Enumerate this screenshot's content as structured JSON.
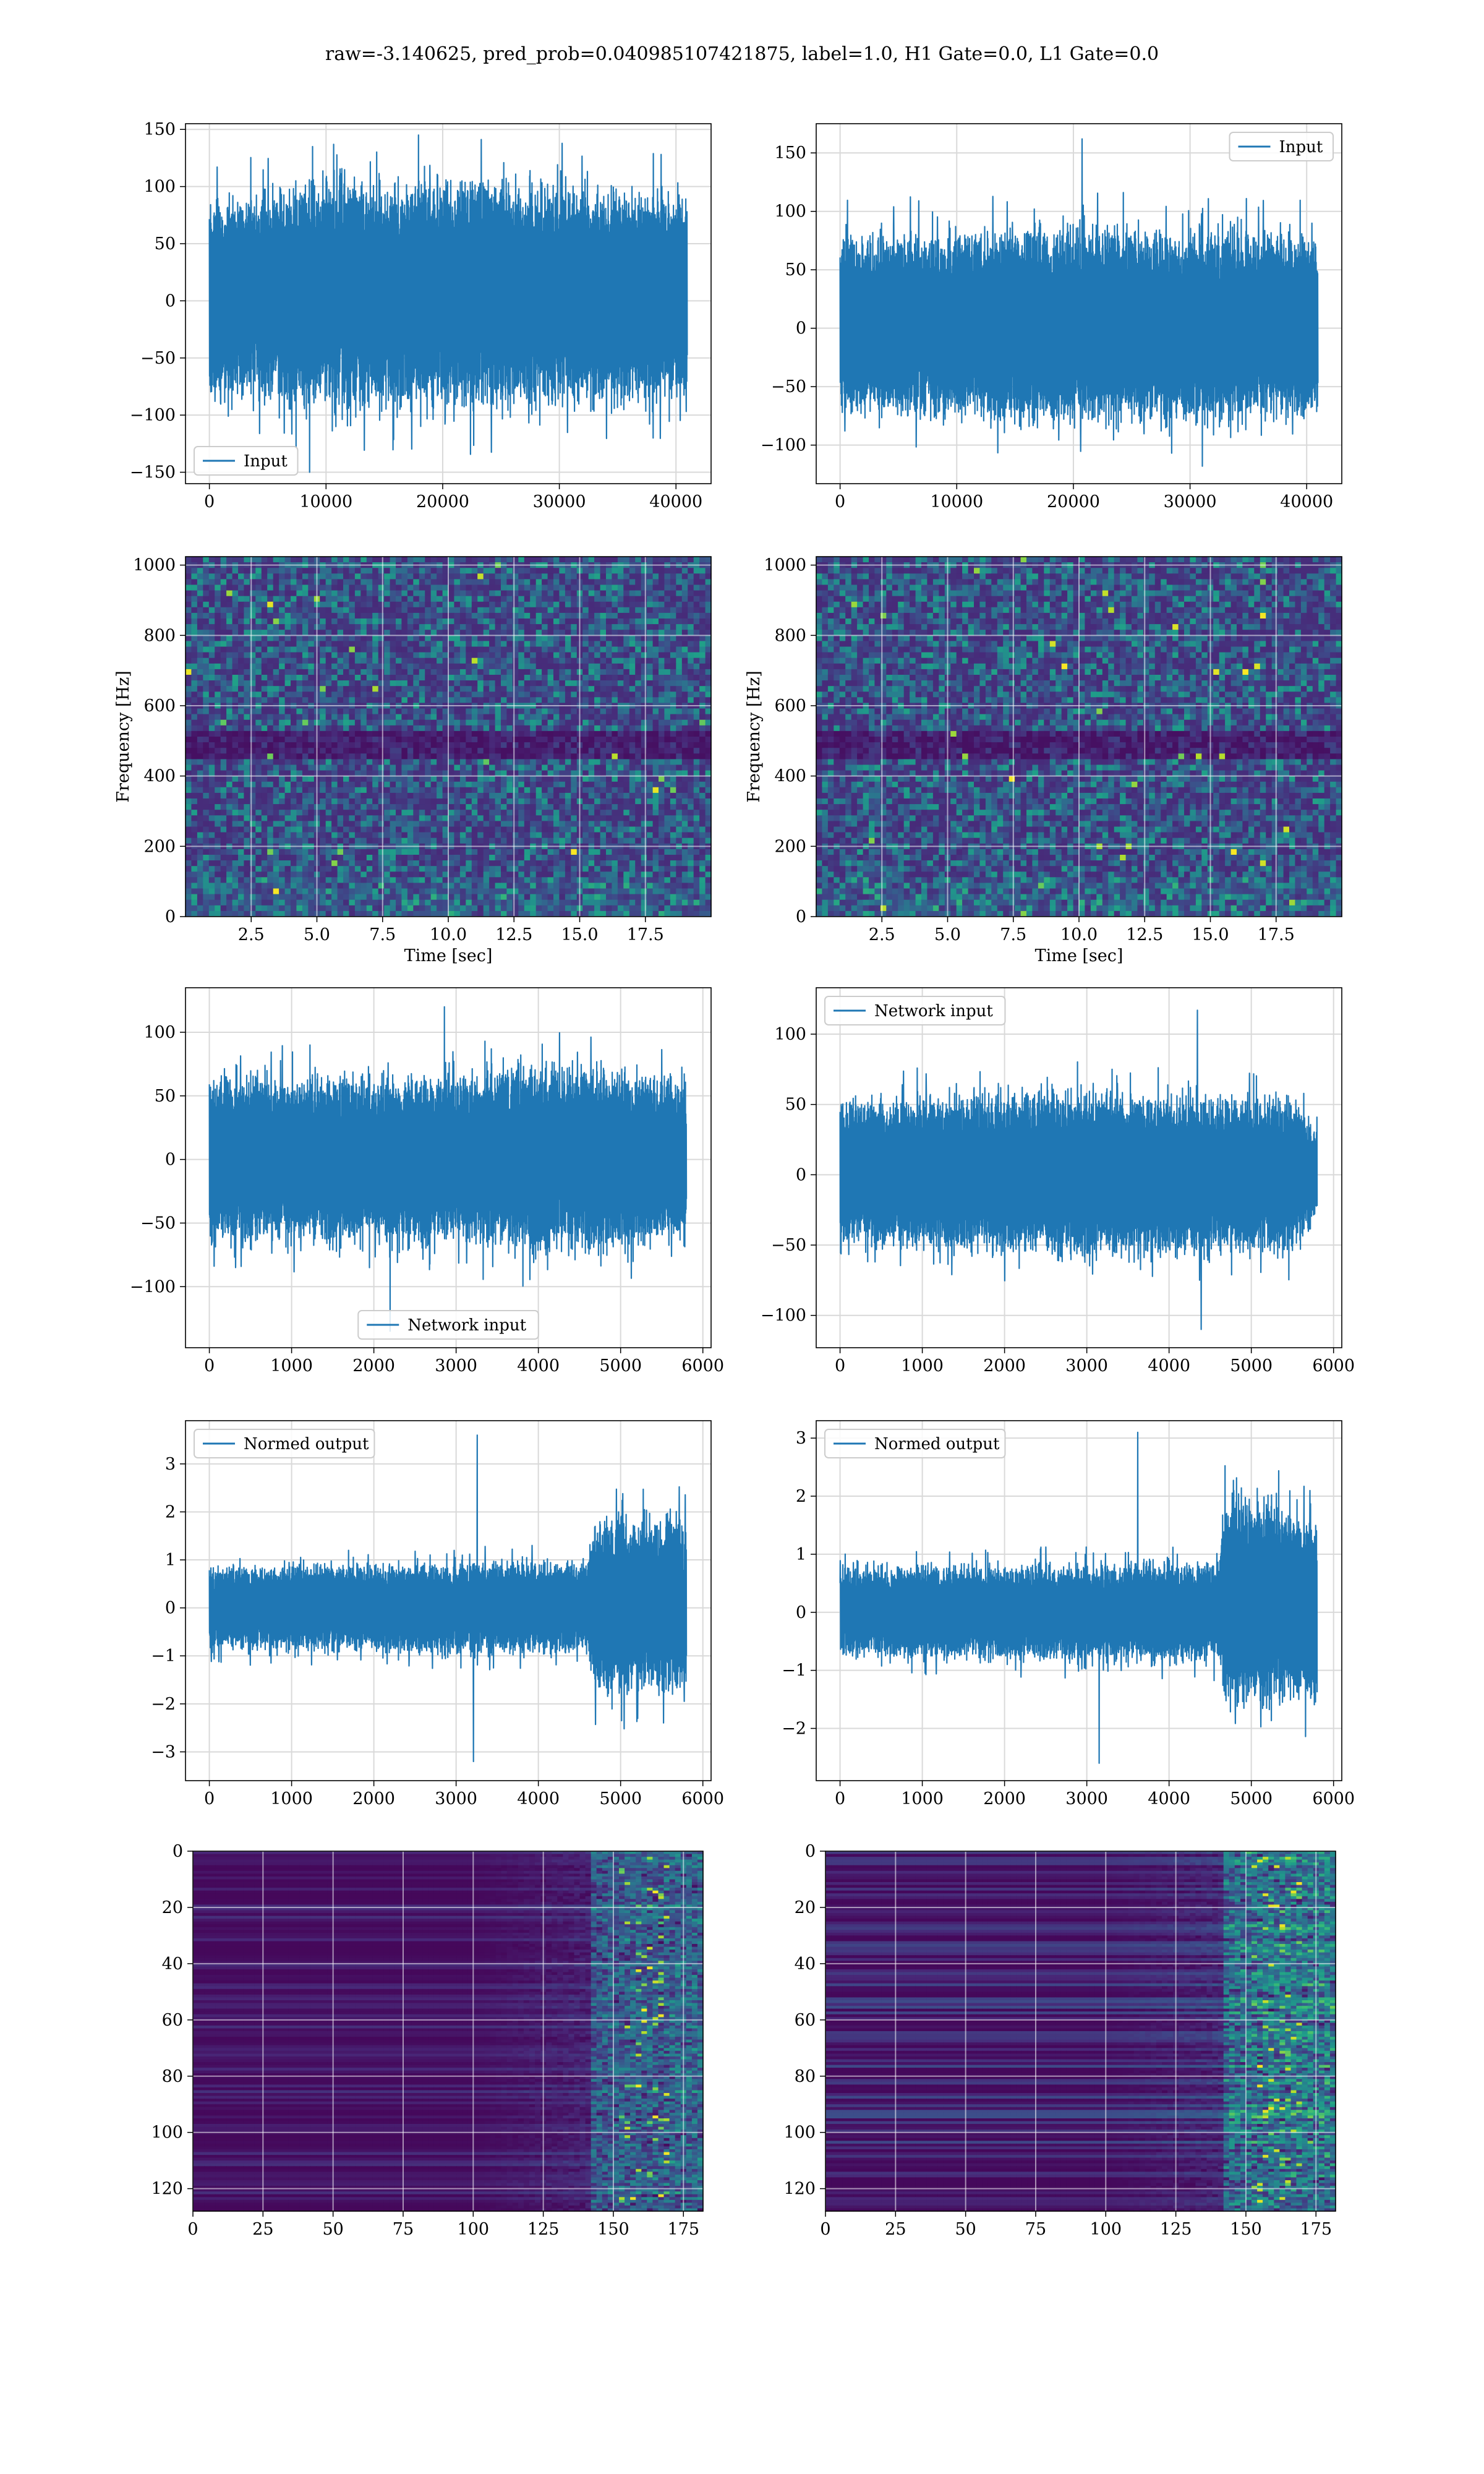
{
  "figure": {
    "title": "raw=-3.140625, pred_prob=0.040985107421875, label=1.0, H1 Gate=0.0, L1 Gate=0.0",
    "line_color": "#1f77b4",
    "grid_color": "#d9d9d9"
  },
  "chart_data": [
    {
      "type": "line",
      "legend": "Input",
      "legend_loc": "lower-left",
      "xlim": [
        -2048,
        43008
      ],
      "ylim": [
        -160,
        155
      ],
      "xticks": [
        0,
        10000,
        20000,
        30000,
        40000
      ],
      "yticks": [
        -150,
        -100,
        -50,
        0,
        50,
        100,
        150
      ],
      "series": [
        {
          "name": "Input",
          "x_range": [
            0,
            40960
          ],
          "envelope": [
            {
              "x": 0,
              "low": -75,
              "high": 80
            },
            {
              "x": 8000,
              "low": -85,
              "high": 95
            },
            {
              "x": 20000,
              "low": -90,
              "high": 100
            },
            {
              "x": 30000,
              "low": -85,
              "high": 95
            },
            {
              "x": 40960,
              "low": -80,
              "high": 85
            }
          ],
          "peak_max": 137,
          "peak_min": -150
        }
      ]
    },
    {
      "type": "line",
      "legend": "Input",
      "legend_loc": "upper-right",
      "xlim": [
        -2048,
        43008
      ],
      "ylim": [
        -133,
        175
      ],
      "xticks": [
        0,
        10000,
        20000,
        30000,
        40000
      ],
      "yticks": [
        -100,
        -50,
        0,
        50,
        100,
        150
      ],
      "series": [
        {
          "name": "Input",
          "x_range": [
            0,
            40960
          ],
          "envelope": [
            {
              "x": 0,
              "low": -70,
              "high": 75
            },
            {
              "x": 20000,
              "low": -75,
              "high": 80
            },
            {
              "x": 40960,
              "low": -70,
              "high": 75
            }
          ],
          "peak_max": 162,
          "peak_min": -118
        }
      ]
    },
    {
      "type": "heatmap",
      "xlabel": "Time [sec]",
      "ylabel": "Frequency [Hz]",
      "xlim": [
        0,
        20
      ],
      "ylim": [
        0,
        1024
      ],
      "xticks": [
        2.5,
        5.0,
        7.5,
        10.0,
        12.5,
        15.0,
        17.5
      ],
      "xtick_labels": [
        "2.5",
        "5.0",
        "7.5",
        "10.0",
        "12.5",
        "15.0",
        "17.5"
      ],
      "yticks": [
        0,
        200,
        400,
        600,
        800,
        1000
      ],
      "colormap": "viridis"
    },
    {
      "type": "heatmap",
      "xlabel": "Time [sec]",
      "ylabel": "Frequency [Hz]",
      "xlim": [
        0,
        20
      ],
      "ylim": [
        0,
        1024
      ],
      "xticks": [
        2.5,
        5.0,
        7.5,
        10.0,
        12.5,
        15.0,
        17.5
      ],
      "xtick_labels": [
        "2.5",
        "5.0",
        "7.5",
        "10.0",
        "12.5",
        "15.0",
        "17.5"
      ],
      "yticks": [
        0,
        200,
        400,
        600,
        800,
        1000
      ],
      "colormap": "viridis"
    },
    {
      "type": "line",
      "legend": "Network input",
      "legend_loc": "lower-center",
      "xlim": [
        -290,
        6100
      ],
      "ylim": [
        -148,
        135
      ],
      "xticks": [
        0,
        1000,
        2000,
        3000,
        4000,
        5000,
        6000
      ],
      "yticks": [
        -100,
        -50,
        0,
        50,
        100
      ],
      "series": [
        {
          "name": "Network input",
          "x_range": [
            0,
            5800
          ],
          "envelope": [
            {
              "x": 0,
              "low": -60,
              "high": 60
            },
            {
              "x": 3000,
              "low": -60,
              "high": 60
            },
            {
              "x": 4000,
              "low": -70,
              "high": 70
            },
            {
              "x": 5800,
              "low": -60,
              "high": 60
            }
          ],
          "peak_max": 120,
          "peak_min": -135
        }
      ]
    },
    {
      "type": "line",
      "legend": "Network input",
      "legend_loc": "upper-left",
      "xlim": [
        -290,
        6100
      ],
      "ylim": [
        -123,
        133
      ],
      "xticks": [
        0,
        1000,
        2000,
        3000,
        4000,
        5000,
        6000
      ],
      "yticks": [
        -100,
        -50,
        0,
        50,
        100
      ],
      "series": [
        {
          "name": "Network input",
          "x_range": [
            0,
            5800
          ],
          "envelope": [
            {
              "x": 0,
              "low": -45,
              "high": 50
            },
            {
              "x": 3000,
              "low": -55,
              "high": 55
            },
            {
              "x": 5500,
              "low": -50,
              "high": 50
            },
            {
              "x": 5800,
              "low": -30,
              "high": 30
            }
          ],
          "peak_max": 117,
          "peak_min": -110
        }
      ]
    },
    {
      "type": "line",
      "legend": "Normed output",
      "legend_loc": "upper-left",
      "xlim": [
        -290,
        6100
      ],
      "ylim": [
        -3.6,
        3.9
      ],
      "xticks": [
        0,
        1000,
        2000,
        3000,
        4000,
        5000,
        6000
      ],
      "yticks": [
        -3,
        -2,
        -1,
        0,
        1,
        2,
        3
      ],
      "series": [
        {
          "name": "Normed output",
          "x_range": [
            0,
            5800
          ],
          "envelope": [
            {
              "x": 0,
              "low": -0.8,
              "high": 0.8
            },
            {
              "x": 4600,
              "low": -0.9,
              "high": 0.9
            },
            {
              "x": 4700,
              "low": -1.7,
              "high": 1.8
            },
            {
              "x": 5800,
              "low": -1.6,
              "high": 1.7
            }
          ],
          "peak_max": 3.6,
          "peak_min": -3.2
        }
      ]
    },
    {
      "type": "line",
      "legend": "Normed output",
      "legend_loc": "upper-left",
      "xlim": [
        -290,
        6100
      ],
      "ylim": [
        -2.9,
        3.3
      ],
      "xticks": [
        0,
        1000,
        2000,
        3000,
        4000,
        5000,
        6000
      ],
      "yticks": [
        -2,
        -1,
        0,
        1,
        2,
        3
      ],
      "series": [
        {
          "name": "Normed output",
          "x_range": [
            0,
            5800
          ],
          "envelope": [
            {
              "x": 0,
              "low": -0.7,
              "high": 0.7
            },
            {
              "x": 4600,
              "low": -0.8,
              "high": 0.8
            },
            {
              "x": 4700,
              "low": -1.5,
              "high": 2.0
            },
            {
              "x": 5800,
              "low": -1.4,
              "high": 1.5
            }
          ],
          "peak_max": 3.1,
          "peak_min": -2.6
        }
      ]
    },
    {
      "type": "heatmap",
      "xlim": [
        0,
        182
      ],
      "ylim": [
        128,
        0
      ],
      "xticks": [
        0,
        25,
        50,
        75,
        100,
        125,
        150,
        175
      ],
      "yticks": [
        0,
        20,
        40,
        60,
        80,
        100,
        120
      ],
      "colormap": "viridis"
    },
    {
      "type": "heatmap",
      "xlim": [
        0,
        182
      ],
      "ylim": [
        128,
        0
      ],
      "xticks": [
        0,
        25,
        50,
        75,
        100,
        125,
        150,
        175
      ],
      "yticks": [
        0,
        20,
        40,
        60,
        80,
        100,
        120
      ],
      "colormap": "viridis"
    }
  ]
}
